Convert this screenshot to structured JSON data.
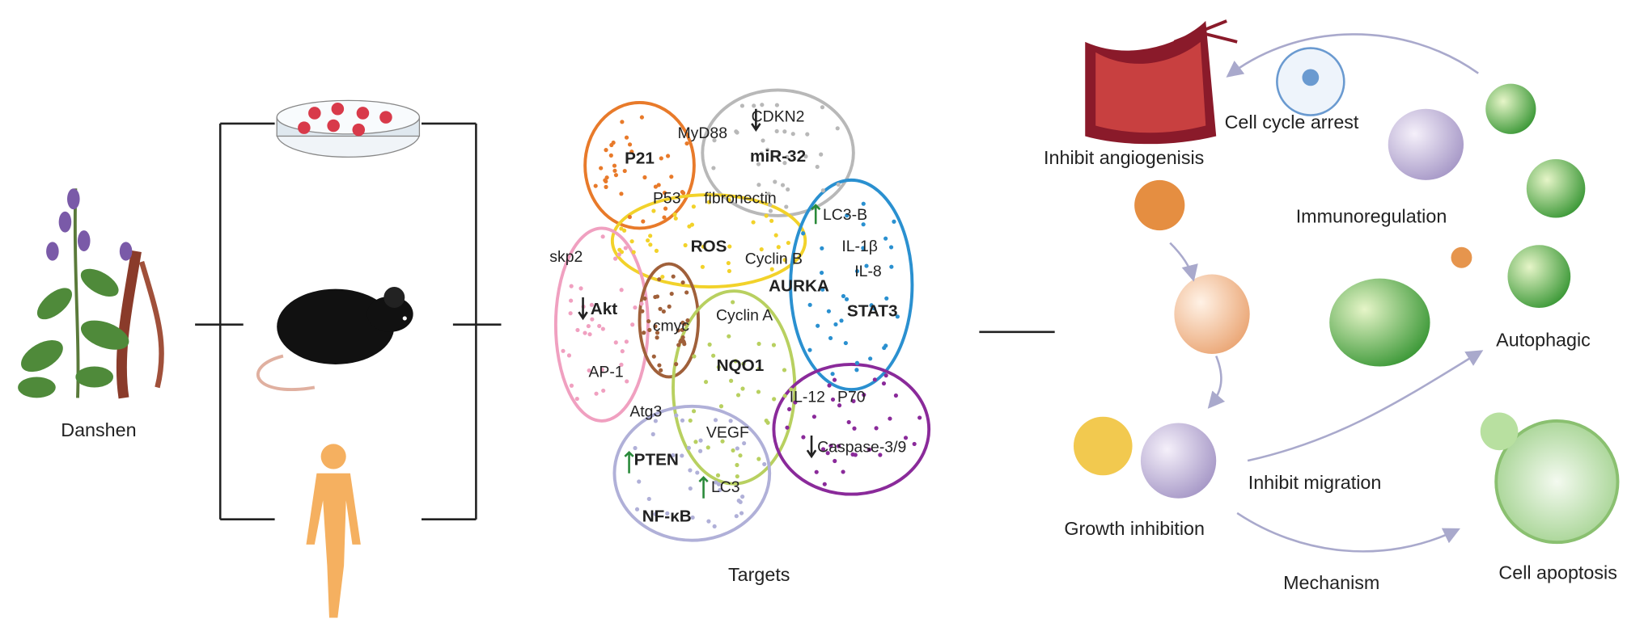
{
  "source": {
    "label": "Danshen"
  },
  "targets": {
    "label": "Targets",
    "genes": [
      "MyD88",
      "CDKN2",
      "miR-32",
      "P21",
      "P53",
      "fibronectin",
      "LC3-B",
      "ROS",
      "Cyclin B",
      "IL-1β",
      "skp2",
      "IL-8",
      "AURKA",
      "STAT3",
      "Akt",
      "cmyc",
      "Cyclin A",
      "NQO1",
      "AP-1",
      "IL-12",
      "P70",
      "Atg3",
      "VEGF",
      "Caspase-3/9",
      "PTEN",
      "LC3",
      "NF-κB"
    ]
  },
  "effects": [
    "Inhibit angiogenisis",
    "Cell cycle arrest",
    "Immunoregulation",
    "Autophagic",
    "Inhibit migration",
    "Growth inhibition",
    "Mechanism",
    "Cell apoptosis"
  ]
}
